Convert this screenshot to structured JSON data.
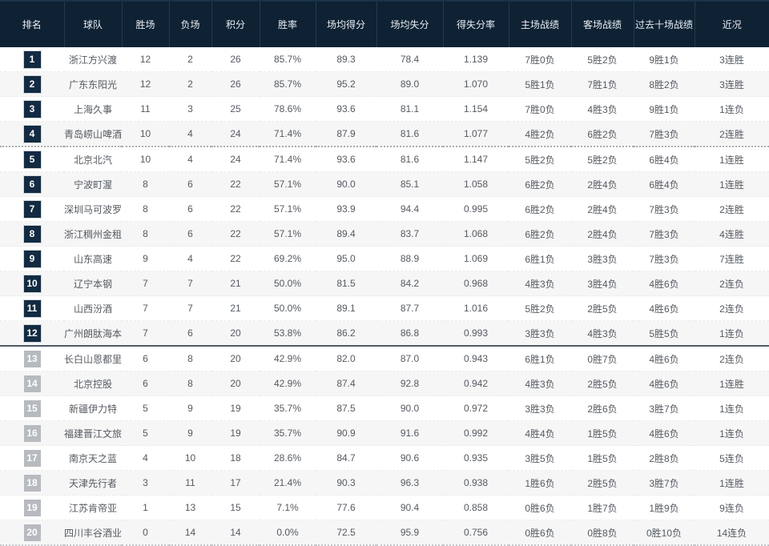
{
  "table": {
    "columns": [
      "排名",
      "球队",
      "胜场",
      "负场",
      "积分",
      "胜率",
      "场均得分",
      "场均失分",
      "得失分率",
      "主场战绩",
      "客场战绩",
      "过去十场战绩",
      "近况"
    ],
    "colors": {
      "header_bg": "#0e2234",
      "rank_badge_dark": "#132b42",
      "rank_badge_gray": "#b7babf",
      "row_alt_bg": "#f6f6f7",
      "cell_text": "#555a60"
    },
    "rows": [
      {
        "rank": "1",
        "team": "浙江方兴渡",
        "wins": "12",
        "losses": "2",
        "points": "26",
        "win_rate": "85.7%",
        "avg_scored": "89.3",
        "avg_allowed": "78.4",
        "score_ratio": "1.139",
        "home": "7胜0负",
        "away": "5胜2负",
        "last10": "9胜1负",
        "streak": "3连胜"
      },
      {
        "rank": "2",
        "team": "广东东阳光",
        "wins": "12",
        "losses": "2",
        "points": "26",
        "win_rate": "85.7%",
        "avg_scored": "95.2",
        "avg_allowed": "89.0",
        "score_ratio": "1.070",
        "home": "5胜1负",
        "away": "7胜1负",
        "last10": "8胜2负",
        "streak": "3连胜"
      },
      {
        "rank": "3",
        "team": "上海久事",
        "wins": "11",
        "losses": "3",
        "points": "25",
        "win_rate": "78.6%",
        "avg_scored": "93.6",
        "avg_allowed": "81.1",
        "score_ratio": "1.154",
        "home": "7胜0负",
        "away": "4胜3负",
        "last10": "9胜1负",
        "streak": "1连负"
      },
      {
        "rank": "4",
        "team": "青岛崂山啤酒",
        "wins": "10",
        "losses": "4",
        "points": "24",
        "win_rate": "71.4%",
        "avg_scored": "87.9",
        "avg_allowed": "81.6",
        "score_ratio": "1.077",
        "home": "4胜2负",
        "away": "6胜2负",
        "last10": "7胜3负",
        "streak": "2连胜"
      },
      {
        "rank": "5",
        "team": "北京北汽",
        "wins": "10",
        "losses": "4",
        "points": "24",
        "win_rate": "71.4%",
        "avg_scored": "93.6",
        "avg_allowed": "81.6",
        "score_ratio": "1.147",
        "home": "5胜2负",
        "away": "5胜2负",
        "last10": "6胜4负",
        "streak": "1连胜"
      },
      {
        "rank": "6",
        "team": "宁波町渥",
        "wins": "8",
        "losses": "6",
        "points": "22",
        "win_rate": "57.1%",
        "avg_scored": "90.0",
        "avg_allowed": "85.1",
        "score_ratio": "1.058",
        "home": "6胜2负",
        "away": "2胜4负",
        "last10": "6胜4负",
        "streak": "1连胜"
      },
      {
        "rank": "7",
        "team": "深圳马可波罗",
        "wins": "8",
        "losses": "6",
        "points": "22",
        "win_rate": "57.1%",
        "avg_scored": "93.9",
        "avg_allowed": "94.4",
        "score_ratio": "0.995",
        "home": "6胜2负",
        "away": "2胜4负",
        "last10": "7胜3负",
        "streak": "2连胜"
      },
      {
        "rank": "8",
        "team": "浙江稠州金租",
        "wins": "8",
        "losses": "6",
        "points": "22",
        "win_rate": "57.1%",
        "avg_scored": "89.4",
        "avg_allowed": "83.7",
        "score_ratio": "1.068",
        "home": "6胜2负",
        "away": "2胜4负",
        "last10": "7胜3负",
        "streak": "4连胜"
      },
      {
        "rank": "9",
        "team": "山东高速",
        "wins": "9",
        "losses": "4",
        "points": "22",
        "win_rate": "69.2%",
        "avg_scored": "95.0",
        "avg_allowed": "88.9",
        "score_ratio": "1.069",
        "home": "6胜1负",
        "away": "3胜3负",
        "last10": "7胜3负",
        "streak": "7连胜"
      },
      {
        "rank": "10",
        "team": "辽宁本钢",
        "wins": "7",
        "losses": "7",
        "points": "21",
        "win_rate": "50.0%",
        "avg_scored": "81.5",
        "avg_allowed": "84.2",
        "score_ratio": "0.968",
        "home": "4胜3负",
        "away": "3胜4负",
        "last10": "4胜6负",
        "streak": "2连负"
      },
      {
        "rank": "11",
        "team": "山西汾酒",
        "wins": "7",
        "losses": "7",
        "points": "21",
        "win_rate": "50.0%",
        "avg_scored": "89.1",
        "avg_allowed": "87.7",
        "score_ratio": "1.016",
        "home": "5胜2负",
        "away": "2胜5负",
        "last10": "4胜6负",
        "streak": "2连负"
      },
      {
        "rank": "12",
        "team": "广州朗肽海本",
        "wins": "7",
        "losses": "6",
        "points": "20",
        "win_rate": "53.8%",
        "avg_scored": "86.2",
        "avg_allowed": "86.8",
        "score_ratio": "0.993",
        "home": "3胜3负",
        "away": "4胜3负",
        "last10": "5胜5负",
        "streak": "1连负"
      },
      {
        "rank": "13",
        "team": "长白山恩都里",
        "wins": "6",
        "losses": "8",
        "points": "20",
        "win_rate": "42.9%",
        "avg_scored": "82.0",
        "avg_allowed": "87.0",
        "score_ratio": "0.943",
        "home": "6胜1负",
        "away": "0胜7负",
        "last10": "4胜6负",
        "streak": "2连负"
      },
      {
        "rank": "14",
        "team": "北京控股",
        "wins": "6",
        "losses": "8",
        "points": "20",
        "win_rate": "42.9%",
        "avg_scored": "87.4",
        "avg_allowed": "92.8",
        "score_ratio": "0.942",
        "home": "4胜3负",
        "away": "2胜5负",
        "last10": "4胜6负",
        "streak": "1连胜"
      },
      {
        "rank": "15",
        "team": "新疆伊力特",
        "wins": "5",
        "losses": "9",
        "points": "19",
        "win_rate": "35.7%",
        "avg_scored": "87.5",
        "avg_allowed": "90.0",
        "score_ratio": "0.972",
        "home": "3胜3负",
        "away": "2胜6负",
        "last10": "3胜7负",
        "streak": "1连负"
      },
      {
        "rank": "16",
        "team": "福建晋江文旅",
        "wins": "5",
        "losses": "9",
        "points": "19",
        "win_rate": "35.7%",
        "avg_scored": "90.9",
        "avg_allowed": "91.6",
        "score_ratio": "0.992",
        "home": "4胜4负",
        "away": "1胜5负",
        "last10": "4胜6负",
        "streak": "1连负"
      },
      {
        "rank": "17",
        "team": "南京天之蓝",
        "wins": "4",
        "losses": "10",
        "points": "18",
        "win_rate": "28.6%",
        "avg_scored": "84.7",
        "avg_allowed": "90.6",
        "score_ratio": "0.935",
        "home": "3胜5负",
        "away": "1胜5负",
        "last10": "2胜8负",
        "streak": "5连负"
      },
      {
        "rank": "18",
        "team": "天津先行者",
        "wins": "3",
        "losses": "11",
        "points": "17",
        "win_rate": "21.4%",
        "avg_scored": "90.3",
        "avg_allowed": "96.3",
        "score_ratio": "0.938",
        "home": "1胜6负",
        "away": "2胜5负",
        "last10": "3胜7负",
        "streak": "1连胜"
      },
      {
        "rank": "19",
        "team": "江苏肯帝亚",
        "wins": "1",
        "losses": "13",
        "points": "15",
        "win_rate": "7.1%",
        "avg_scored": "77.6",
        "avg_allowed": "90.4",
        "score_ratio": "0.858",
        "home": "0胜6负",
        "away": "1胜7负",
        "last10": "1胜9负",
        "streak": "9连负"
      },
      {
        "rank": "20",
        "team": "四川丰谷酒业",
        "wins": "0",
        "losses": "14",
        "points": "14",
        "win_rate": "0.0%",
        "avg_scored": "72.5",
        "avg_allowed": "95.9",
        "score_ratio": "0.756",
        "home": "0胜6负",
        "away": "0胜8负",
        "last10": "0胜10负",
        "streak": "14连负"
      }
    ]
  }
}
